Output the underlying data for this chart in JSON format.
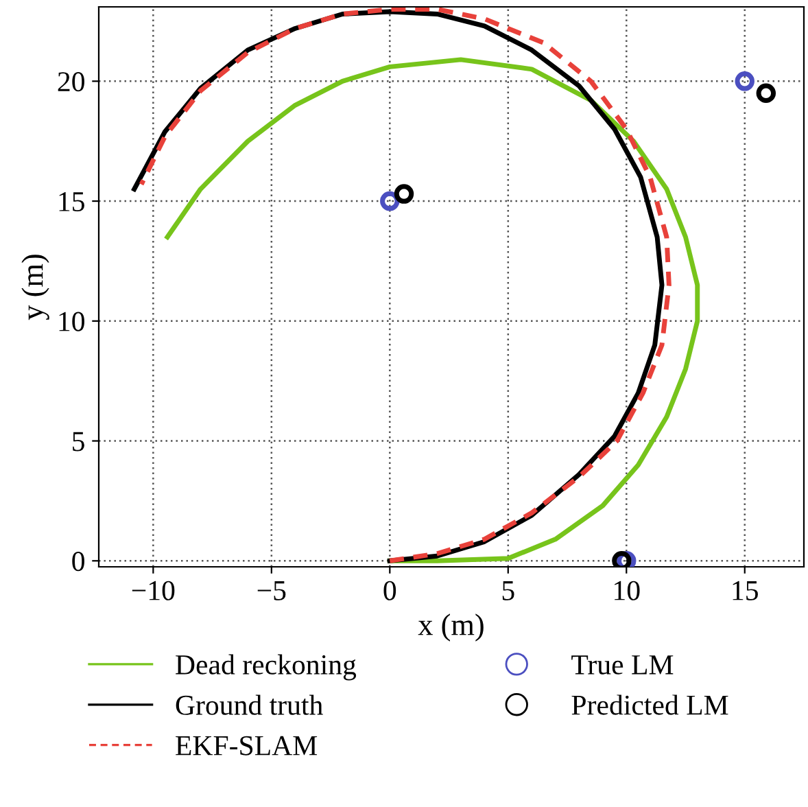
{
  "chart_data": {
    "type": "line",
    "xlabel": "x (m)",
    "ylabel": "y (m)",
    "xlim": [
      -12.3,
      17.5
    ],
    "ylim": [
      -0.25,
      23.1
    ],
    "xticks": [
      -10,
      -5,
      0,
      5,
      10,
      15
    ],
    "yticks": [
      0,
      5,
      10,
      15,
      20
    ],
    "grid": true,
    "legend": "bottom",
    "series": [
      {
        "name": "Dead reckoning",
        "color": "#77c41b",
        "line_style": "solid",
        "x": [
          0,
          2,
          5,
          7,
          9,
          10.5,
          11.7,
          12.5,
          13,
          13,
          12.5,
          11.7,
          10.3,
          8.5,
          6,
          3,
          0,
          -2,
          -4,
          -6,
          -8,
          -9.4
        ],
        "values": [
          0,
          0,
          0.1,
          0.9,
          2.3,
          4,
          6,
          8,
          10,
          11.5,
          13.5,
          15.5,
          17.5,
          19.2,
          20.5,
          20.9,
          20.6,
          20,
          19,
          17.5,
          15.5,
          13.5
        ]
      },
      {
        "name": "Ground truth",
        "color": "#000000",
        "line_style": "solid",
        "x": [
          0,
          2,
          4,
          6,
          8,
          9.5,
          10.5,
          11.2,
          11.5,
          11.3,
          10.6,
          9.5,
          8,
          6,
          4,
          2,
          0,
          -2,
          -4,
          -6,
          -8,
          -9.5,
          -10.8
        ],
        "values": [
          0,
          0.2,
          0.8,
          1.9,
          3.6,
          5.2,
          7,
          9,
          11.5,
          13.5,
          16,
          18,
          19.8,
          21.3,
          22.3,
          22.8,
          22.9,
          22.8,
          22.2,
          21.3,
          19.7,
          17.9,
          15.5
        ]
      },
      {
        "name": "EKF-SLAM",
        "color": "#e8413a",
        "line_style": "dashed",
        "x": [
          0,
          2,
          4,
          6,
          8,
          9.6,
          10.7,
          11.5,
          11.8,
          11.7,
          11,
          10,
          8.5,
          6.5,
          4,
          2,
          0,
          -2,
          -4,
          -6,
          -8,
          -9.5,
          -10.5
        ],
        "values": [
          0,
          0.3,
          0.9,
          2,
          3.5,
          5,
          7,
          9,
          11.5,
          13.5,
          16,
          18,
          20,
          21.6,
          22.6,
          23,
          23,
          22.8,
          22.2,
          21.2,
          19.6,
          17.7,
          15.7
        ]
      },
      {
        "name": "True LM",
        "type": "scatter",
        "color": "#4b4fc0",
        "marker": "circle",
        "x": [
          0,
          15,
          10
        ],
        "values": [
          15,
          20,
          0
        ]
      },
      {
        "name": "Predicted LM",
        "type": "scatter",
        "color": "#000000",
        "marker": "circle",
        "x": [
          0.6,
          15.9,
          9.8
        ],
        "values": [
          15.3,
          19.5,
          0
        ]
      }
    ]
  }
}
